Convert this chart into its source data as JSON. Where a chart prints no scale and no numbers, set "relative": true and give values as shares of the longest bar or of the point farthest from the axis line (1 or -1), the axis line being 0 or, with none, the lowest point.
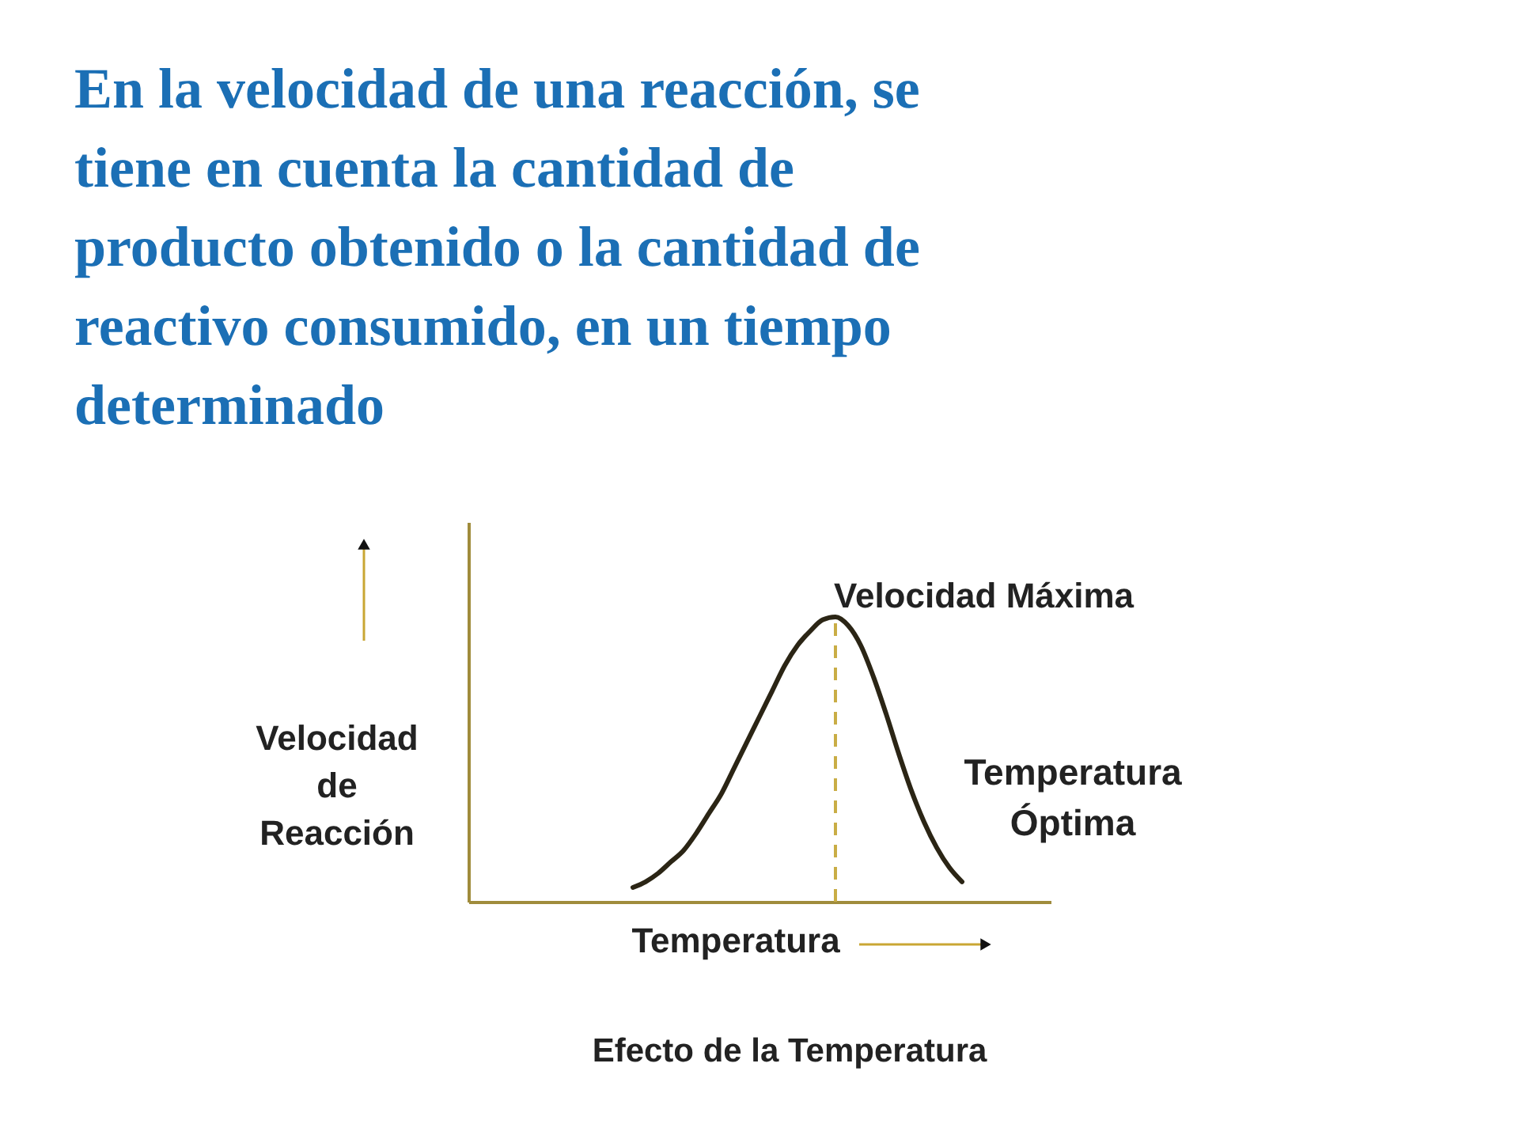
{
  "chart_data": {
    "type": "line",
    "title": "En la velocidad de una reacción, se tiene en cuenta la cantidad de producto obtenido o la cantidad de reactivo consumido, en un tiempo determinado",
    "xlabel": "Temperatura",
    "ylabel": "Velocidad de Reacción",
    "relative": true,
    "line_style": "solid",
    "categories": [
      null,
      null,
      null,
      null,
      null,
      null,
      null,
      null,
      null,
      null,
      null,
      null,
      null,
      null,
      null,
      null,
      null,
      null,
      null,
      null,
      null,
      null,
      null,
      null,
      null,
      null,
      null,
      null,
      null,
      null,
      null,
      null,
      null,
      null,
      null,
      null,
      null,
      null,
      null,
      null,
      null,
      null,
      null,
      null,
      null,
      null,
      null
    ],
    "values": [
      null,
      null,
      null,
      null,
      null,
      null,
      null,
      null,
      null,
      null,
      null,
      null,
      null,
      0.05,
      0.07,
      0.1,
      0.14,
      0.18,
      0.24,
      0.31,
      0.38,
      0.47,
      0.56,
      0.65,
      0.74,
      0.83,
      0.9,
      0.95,
      0.99,
      1,
      0.97,
      0.9,
      0.79,
      0.66,
      0.52,
      0.39,
      0.28,
      0.19,
      0.12,
      0.07,
      null,
      null,
      null,
      null,
      null,
      null,
      null
    ],
    "color": "#2b2515",
    "annotations": [
      "Velocidad Máxima",
      "Temperatura Óptima",
      "Efecto de la Temperatura"
    ]
  }
}
